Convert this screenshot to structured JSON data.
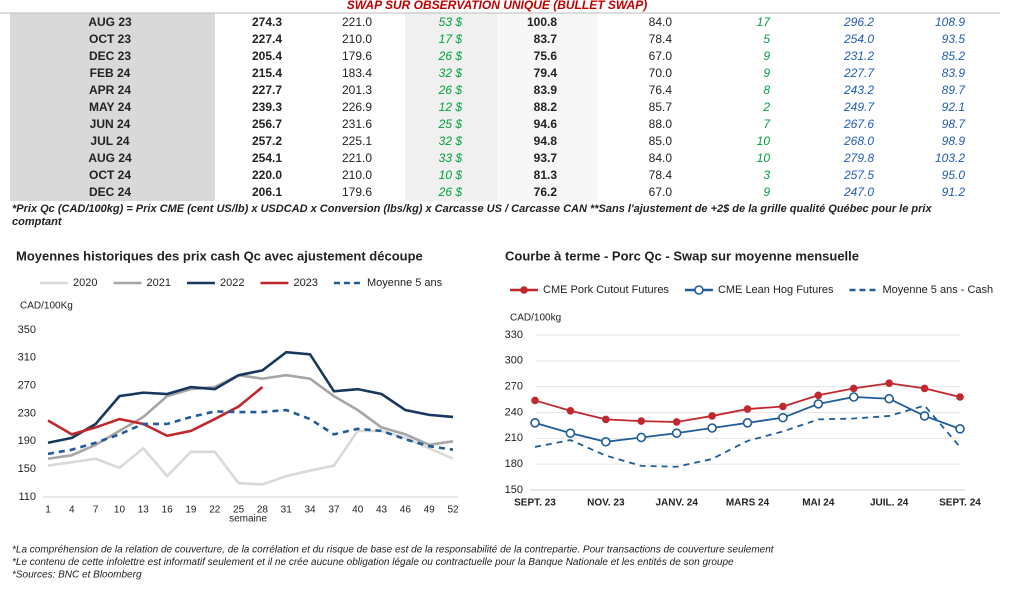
{
  "table": {
    "title": "SWAP SUR OBSERVATION UNIQUE (BULLET SWAP)",
    "rows": [
      [
        "AUG 23",
        "274.3",
        "221.0",
        "53 $",
        "100.8",
        "84.0",
        "17",
        "296.2",
        "108.9"
      ],
      [
        "OCT 23",
        "227.4",
        "210.0",
        "17 $",
        "83.7",
        "78.4",
        "5",
        "254.0",
        "93.5"
      ],
      [
        "DEC 23",
        "205.4",
        "179.6",
        "26 $",
        "75.6",
        "67.0",
        "9",
        "231.2",
        "85.2"
      ],
      [
        "FEB 24",
        "215.4",
        "183.4",
        "32 $",
        "79.4",
        "70.0",
        "9",
        "227.7",
        "83.9"
      ],
      [
        "APR 24",
        "227.7",
        "201.3",
        "26 $",
        "83.9",
        "76.4",
        "8",
        "243.2",
        "89.7"
      ],
      [
        "MAY 24",
        "239.3",
        "226.9",
        "12 $",
        "88.2",
        "85.7",
        "2",
        "249.7",
        "92.1"
      ],
      [
        "JUN 24",
        "256.7",
        "231.6",
        "25 $",
        "94.6",
        "88.0",
        "7",
        "267.6",
        "98.7"
      ],
      [
        "JUL 24",
        "257.2",
        "225.1",
        "32 $",
        "94.8",
        "85.0",
        "10",
        "268.0",
        "98.9"
      ],
      [
        "AUG 24",
        "254.1",
        "221.0",
        "33 $",
        "93.7",
        "84.0",
        "10",
        "279.8",
        "103.2"
      ],
      [
        "OCT 24",
        "220.0",
        "210.0",
        "10 $",
        "81.3",
        "78.4",
        "3",
        "257.5",
        "95.0"
      ],
      [
        "DEC 24",
        "206.1",
        "179.6",
        "26 $",
        "76.2",
        "67.0",
        "9",
        "247.0",
        "91.2"
      ]
    ]
  },
  "note": "*Prix Qc (CAD/100kg) = Prix CME (cent US/lb) x USDCAD x Conversion (lbs/kg) x Carcasse US / Carcasse CAN **Sans l'ajustement de +2$ de la grille qualité Québec pour le prix comptant",
  "chart_data": [
    {
      "type": "line",
      "title": "Moyennes historiques des prix cash Qc avec ajustement découpe",
      "y_label": "CAD/100Kg",
      "x_label": "semaine",
      "x": [
        1,
        4,
        7,
        10,
        13,
        16,
        19,
        22,
        25,
        28,
        31,
        34,
        37,
        40,
        43,
        46,
        49,
        52
      ],
      "xlim": [
        1,
        52
      ],
      "xticks": [
        1,
        4,
        7,
        10,
        13,
        16,
        19,
        22,
        25,
        28,
        31,
        34,
        37,
        40,
        43,
        46,
        49,
        52
      ],
      "ylim": [
        110,
        350
      ],
      "yticks": [
        110,
        150,
        190,
        230,
        270,
        310,
        350
      ],
      "grid": false,
      "series": [
        {
          "name": "2020",
          "color": "#d9d9d9",
          "dashed": false,
          "values": [
            155,
            160,
            165,
            152,
            180,
            140,
            175,
            175,
            130,
            128,
            140,
            148,
            155,
            205,
            205,
            195,
            180,
            165
          ]
        },
        {
          "name": "2021",
          "color": "#a6a6a6",
          "dashed": false,
          "values": [
            165,
            170,
            185,
            205,
            225,
            255,
            265,
            268,
            285,
            280,
            285,
            280,
            255,
            235,
            210,
            200,
            185,
            190
          ]
        },
        {
          "name": "2022",
          "color": "#17375e",
          "dashed": false,
          "values": [
            188,
            195,
            215,
            255,
            260,
            258,
            268,
            265,
            285,
            292,
            318,
            315,
            262,
            265,
            258,
            235,
            228,
            225
          ]
        },
        {
          "name": "2023",
          "color": "#c0282d",
          "dashed": false,
          "values": [
            220,
            200,
            210,
            222,
            215,
            198,
            205,
            222,
            240,
            268,
            null,
            null,
            null,
            null,
            null,
            null,
            null,
            null
          ]
        },
        {
          "name": "Moyenne 5 ans",
          "color": "#1f5c99",
          "dashed": true,
          "values": [
            172,
            178,
            188,
            200,
            215,
            215,
            225,
            233,
            232,
            232,
            235,
            222,
            200,
            208,
            205,
            193,
            183,
            178
          ]
        }
      ]
    },
    {
      "type": "line",
      "title": "Courbe à terme - Porc Qc - Swap sur moyenne mensuelle",
      "y_label": "CAD/100kg",
      "categories": [
        "SEPT. 23",
        null,
        "NOV. 23",
        null,
        "JANV. 24",
        null,
        "MARS 24",
        null,
        "MAI 24",
        null,
        "JUIL. 24",
        null,
        "SEPT. 24"
      ],
      "ylim": [
        150,
        330
      ],
      "yticks": [
        150,
        180,
        210,
        240,
        270,
        300,
        330
      ],
      "grid": true,
      "series": [
        {
          "name": "CME Pork Cutout Futures",
          "color": "#c0282d",
          "dashed": false,
          "marker": "filled",
          "values": [
            254,
            242,
            232,
            230,
            229,
            236,
            244,
            247,
            260,
            268,
            274,
            268,
            258
          ]
        },
        {
          "name": "CME Lean Hog Futures",
          "color": "#1f5c99",
          "dashed": false,
          "marker": "hollow",
          "values": [
            228,
            216,
            206,
            211,
            216,
            222,
            228,
            234,
            250,
            258,
            256,
            236,
            221
          ]
        },
        {
          "name": "Moyenne 5 ans - Cash",
          "color": "#1f5c99",
          "dashed": true,
          "values": [
            200,
            208,
            190,
            178,
            177,
            186,
            207,
            218,
            232,
            233,
            236,
            248,
            200
          ]
        }
      ]
    }
  ],
  "footer": [
    "*La compréhension de la relation de couverture, de la corrélation et du risque de base est de la responsabilité de la contrepartie. Pour transactions de couverture seulement",
    "*Le contenu de cette infolettre est informatif seulement et il ne crée aucune obligation légale ou contractuelle pour la Banque Nationale et les entités de son groupe",
    "*Sources: BNC et Bloomberg"
  ]
}
